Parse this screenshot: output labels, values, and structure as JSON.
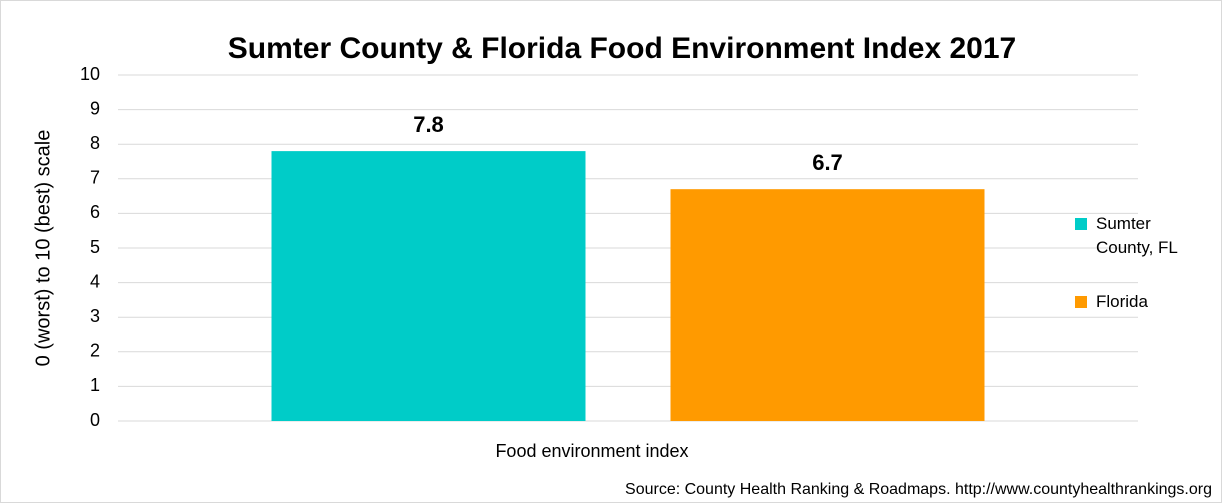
{
  "chart_data": {
    "type": "bar",
    "title": "Sumter County & Florida Food Environment Index 2017",
    "y_label": "0 (worst) to 10 (best) scale",
    "x_label": "Food environment index",
    "source": "Source: County Health Ranking & Roadmaps. http://www.countyhealthrankings.org",
    "categories": [
      null
    ],
    "series": [
      {
        "name": "Sumter County, FL",
        "color": "#00CCC8",
        "values": [
          7.8
        ]
      },
      {
        "name": "Florida",
        "color": "#FF9A00",
        "values": [
          6.7
        ]
      }
    ],
    "ylim": [
      0,
      10
    ],
    "yticks": [
      0,
      1,
      2,
      3,
      4,
      5,
      6,
      7,
      8,
      9,
      10
    ],
    "grid": true,
    "legend": "right"
  }
}
